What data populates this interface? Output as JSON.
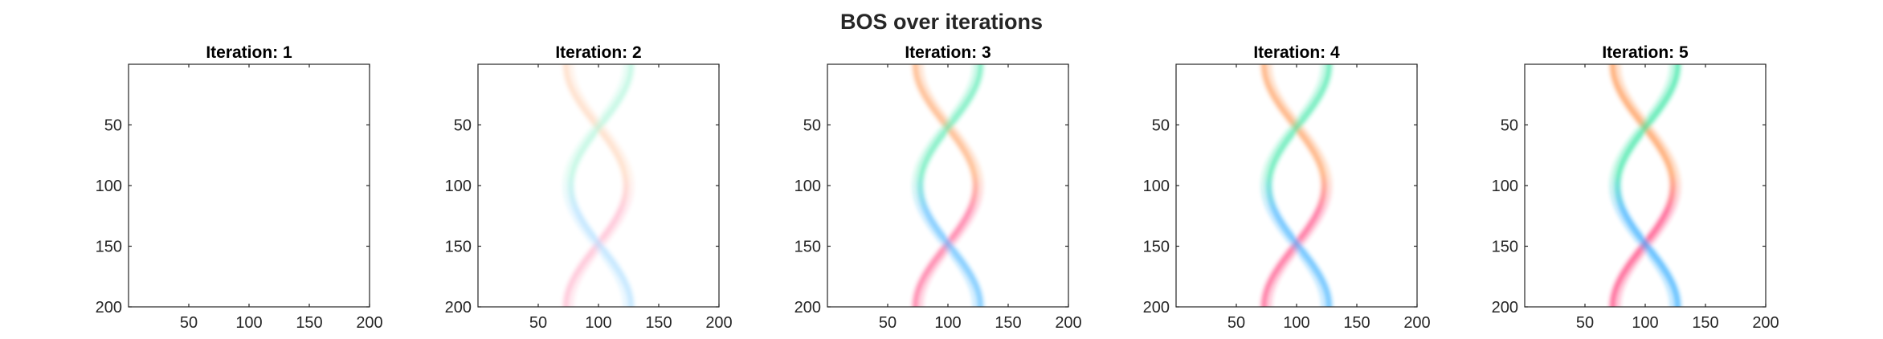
{
  "figure": {
    "title": "BOS over iterations",
    "background": "#ffffff",
    "axis_color": "#262626"
  },
  "chart_data": [
    {
      "type": "heatmap",
      "title": "Iteration: 1",
      "xlim": [
        0,
        200
      ],
      "ylim": [
        0,
        200
      ],
      "y_reversed": true,
      "xticks": [
        50,
        100,
        150,
        200
      ],
      "yticks": [
        50,
        100,
        150,
        200
      ],
      "intensity": 0.0,
      "pattern": "none"
    },
    {
      "type": "heatmap",
      "title": "Iteration: 2",
      "xlim": [
        0,
        200
      ],
      "ylim": [
        0,
        200
      ],
      "y_reversed": true,
      "xticks": [
        50,
        100,
        150,
        200
      ],
      "yticks": [
        50,
        100,
        150,
        200
      ],
      "intensity": 0.35,
      "pattern": "double-helix",
      "curves": {
        "center_x": 100,
        "amplitude": 25,
        "period": 200,
        "colors_left": [
          "#ff8a3d",
          "#ff2d6f"
        ],
        "colors_right": [
          "#1fe39a",
          "#1aa3ff"
        ]
      }
    },
    {
      "type": "heatmap",
      "title": "Iteration: 3",
      "xlim": [
        0,
        200
      ],
      "ylim": [
        0,
        200
      ],
      "y_reversed": true,
      "xticks": [
        50,
        100,
        150,
        200
      ],
      "yticks": [
        50,
        100,
        150,
        200
      ],
      "intensity": 0.75,
      "pattern": "double-helix",
      "curves": {
        "center_x": 100,
        "amplitude": 25,
        "period": 200,
        "colors_left": [
          "#ff8a3d",
          "#ff2d6f"
        ],
        "colors_right": [
          "#1fe39a",
          "#1aa3ff"
        ]
      }
    },
    {
      "type": "heatmap",
      "title": "Iteration: 4",
      "xlim": [
        0,
        200
      ],
      "ylim": [
        0,
        200
      ],
      "y_reversed": true,
      "xticks": [
        50,
        100,
        150,
        200
      ],
      "yticks": [
        50,
        100,
        150,
        200
      ],
      "intensity": 0.85,
      "pattern": "double-helix",
      "curves": {
        "center_x": 100,
        "amplitude": 25,
        "period": 200,
        "colors_left": [
          "#ff8a3d",
          "#ff2d6f"
        ],
        "colors_right": [
          "#1fe39a",
          "#1aa3ff"
        ]
      }
    },
    {
      "type": "heatmap",
      "title": "Iteration: 5",
      "xlim": [
        0,
        200
      ],
      "ylim": [
        0,
        200
      ],
      "y_reversed": true,
      "xticks": [
        50,
        100,
        150,
        200
      ],
      "yticks": [
        50,
        100,
        150,
        200
      ],
      "intensity": 0.95,
      "pattern": "double-helix",
      "curves": {
        "center_x": 100,
        "amplitude": 25,
        "period": 200,
        "colors_left": [
          "#ff8a3d",
          "#ff2d6f"
        ],
        "colors_right": [
          "#1fe39a",
          "#1aa3ff"
        ]
      }
    }
  ]
}
